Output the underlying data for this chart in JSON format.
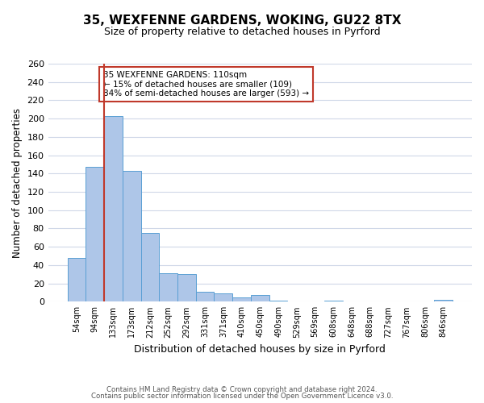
{
  "title1": "35, WEXFENNE GARDENS, WOKING, GU22 8TX",
  "title2": "Size of property relative to detached houses in Pyrford",
  "xlabel": "Distribution of detached houses by size in Pyrford",
  "ylabel": "Number of detached properties",
  "bin_labels": [
    "54sqm",
    "94sqm",
    "133sqm",
    "173sqm",
    "212sqm",
    "252sqm",
    "292sqm",
    "331sqm",
    "371sqm",
    "410sqm",
    "450sqm",
    "490sqm",
    "529sqm",
    "569sqm",
    "608sqm",
    "648sqm",
    "688sqm",
    "727sqm",
    "767sqm",
    "806sqm",
    "846sqm"
  ],
  "bar_values": [
    48,
    147,
    203,
    143,
    75,
    31,
    30,
    11,
    9,
    5,
    7,
    1,
    0,
    0,
    1,
    0,
    0,
    0,
    0,
    0,
    2
  ],
  "bar_color": "#aec6e8",
  "bar_edge_color": "#5a9fd4",
  "vline_color": "#c0392b",
  "annotation_text": "35 WEXFENNE GARDENS: 110sqm\n← 15% of detached houses are smaller (109)\n84% of semi-detached houses are larger (593) →",
  "annotation_box_color": "#ffffff",
  "annotation_box_edge": "#c0392b",
  "ylim": [
    0,
    260
  ],
  "yticks": [
    0,
    20,
    40,
    60,
    80,
    100,
    120,
    140,
    160,
    180,
    200,
    220,
    240,
    260
  ],
  "footer1": "Contains HM Land Registry data © Crown copyright and database right 2024.",
  "footer2": "Contains public sector information licensed under the Open Government Licence v3.0.",
  "bg_color": "#ffffff",
  "grid_color": "#d0d8e8"
}
